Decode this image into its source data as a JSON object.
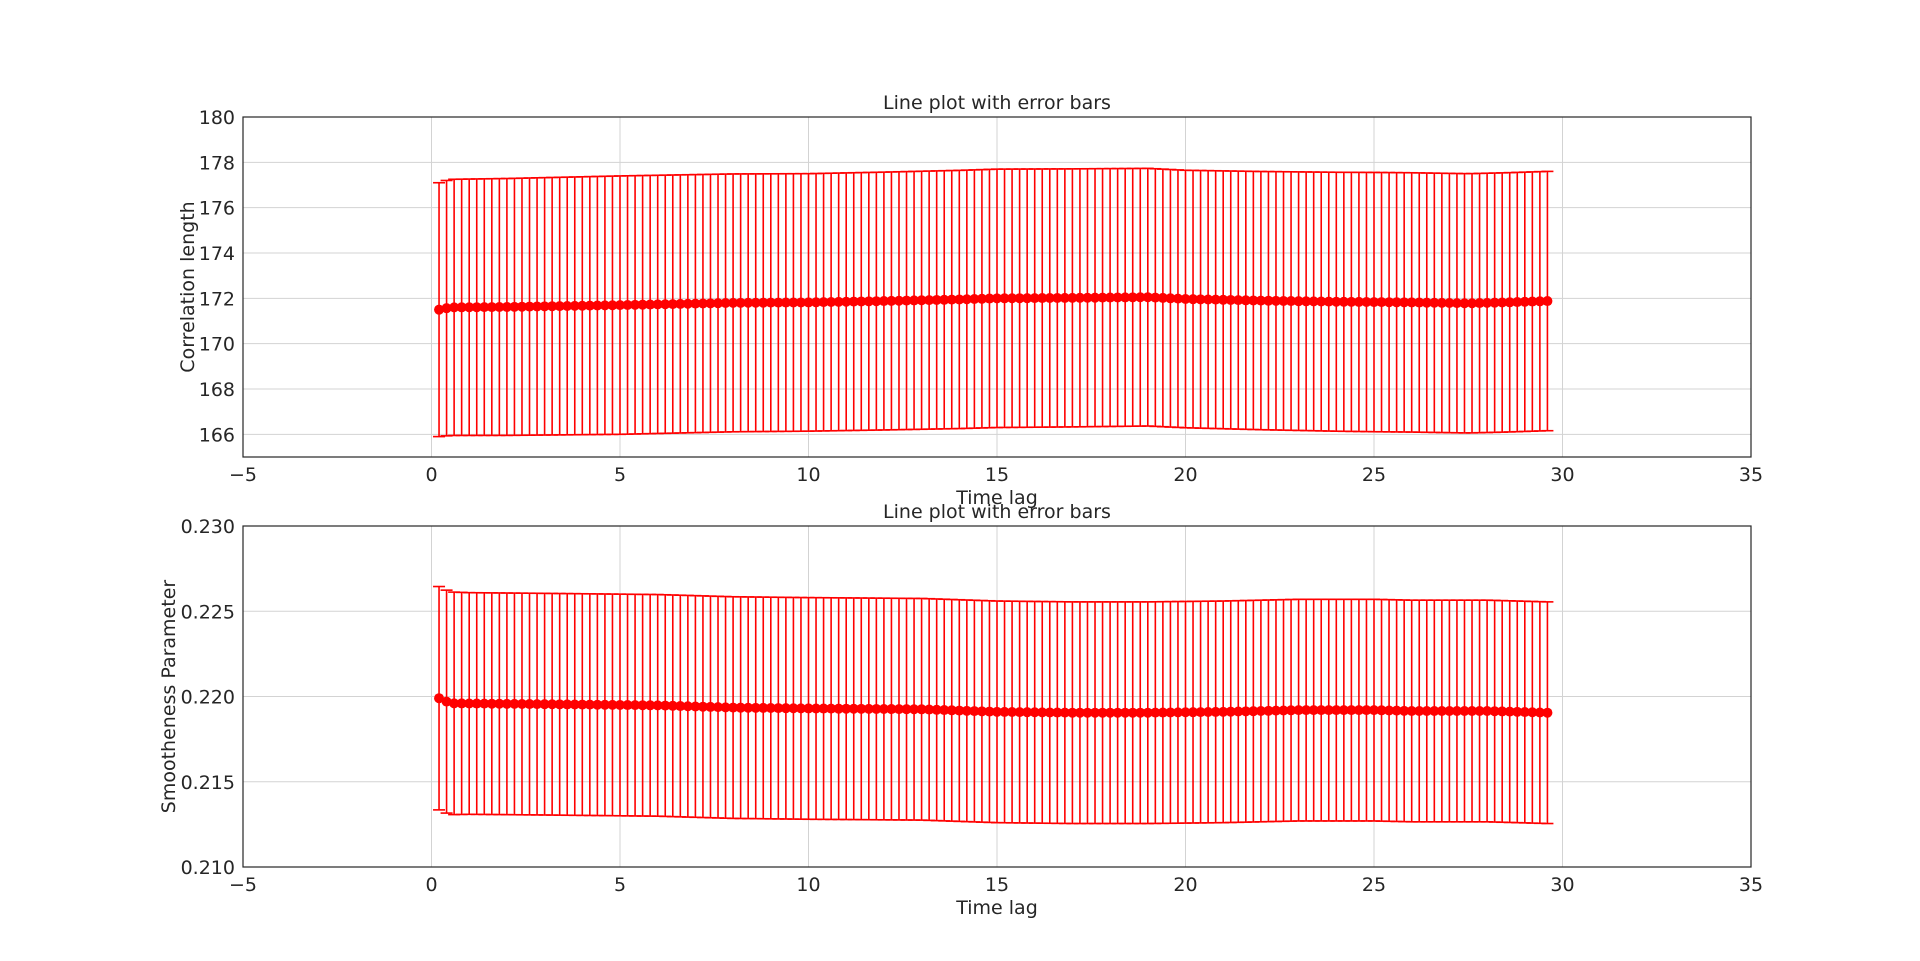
{
  "chart_data": [
    {
      "type": "line",
      "title": "Line plot with error bars",
      "xlabel": "Time lag",
      "ylabel": "Correlation length",
      "xlim": [
        -5,
        35
      ],
      "ylim": [
        165,
        180
      ],
      "xticks": [
        -5,
        0,
        5,
        10,
        15,
        20,
        25,
        30,
        35
      ],
      "yticks": [
        166,
        168,
        170,
        172,
        174,
        176,
        178,
        180
      ],
      "xtick_labels": [
        "−5",
        "0",
        "5",
        "10",
        "15",
        "20",
        "25",
        "30",
        "35"
      ],
      "ytick_labels": [
        "166",
        "168",
        "170",
        "172",
        "174",
        "176",
        "178",
        "180"
      ],
      "grid": true,
      "color": "#ff0000",
      "x_range": [
        0.2,
        29.6
      ],
      "n_points": 148,
      "y_anchors": [
        [
          0.2,
          171.5
        ],
        [
          0.5,
          171.6
        ],
        [
          2,
          171.62
        ],
        [
          5,
          171.7
        ],
        [
          8,
          171.8
        ],
        [
          10,
          171.82
        ],
        [
          12,
          171.88
        ],
        [
          14,
          171.95
        ],
        [
          15,
          172.0
        ],
        [
          17,
          172.02
        ],
        [
          19,
          172.05
        ],
        [
          20,
          171.97
        ],
        [
          22,
          171.9
        ],
        [
          24,
          171.85
        ],
        [
          26,
          171.82
        ],
        [
          27.5,
          171.78
        ],
        [
          28.5,
          171.82
        ],
        [
          29.6,
          171.88
        ]
      ],
      "err_anchors": [
        [
          0.2,
          5.6
        ],
        [
          0.5,
          5.65
        ],
        [
          5,
          5.7
        ],
        [
          10,
          5.68
        ],
        [
          15,
          5.7
        ],
        [
          20,
          5.68
        ],
        [
          25,
          5.72
        ],
        [
          29.6,
          5.72
        ]
      ]
    },
    {
      "type": "line",
      "title": "Line plot with error bars",
      "xlabel": "Time lag",
      "ylabel": "Smootheness Parameter",
      "xlim": [
        -5,
        35
      ],
      "ylim": [
        0.21,
        0.23
      ],
      "xticks": [
        -5,
        0,
        5,
        10,
        15,
        20,
        25,
        30,
        35
      ],
      "yticks": [
        0.21,
        0.215,
        0.22,
        0.225,
        0.23
      ],
      "xtick_labels": [
        "−5",
        "0",
        "5",
        "10",
        "15",
        "20",
        "25",
        "30",
        "35"
      ],
      "ytick_labels": [
        "0.210",
        "0.215",
        "0.220",
        "0.225",
        "0.230"
      ],
      "grid": true,
      "color": "#ff0000",
      "x_range": [
        0.2,
        29.6
      ],
      "n_points": 148,
      "y_anchors": [
        [
          0.2,
          0.2199
        ],
        [
          0.5,
          0.2196
        ],
        [
          3,
          0.21955
        ],
        [
          6,
          0.21948
        ],
        [
          8,
          0.21935
        ],
        [
          10,
          0.2193
        ],
        [
          13,
          0.21925
        ],
        [
          15,
          0.2191
        ],
        [
          17,
          0.21905
        ],
        [
          19,
          0.21905
        ],
        [
          21,
          0.2191
        ],
        [
          23,
          0.2192
        ],
        [
          25,
          0.2192
        ],
        [
          26,
          0.21915
        ],
        [
          28,
          0.21915
        ],
        [
          29.6,
          0.21905
        ]
      ],
      "err_anchors": [
        [
          0.2,
          0.00655
        ],
        [
          1,
          0.0065
        ],
        [
          5,
          0.0065
        ],
        [
          10,
          0.0065
        ],
        [
          15,
          0.0065
        ],
        [
          20,
          0.0065
        ],
        [
          25,
          0.0065
        ],
        [
          29.6,
          0.0065
        ]
      ]
    }
  ]
}
